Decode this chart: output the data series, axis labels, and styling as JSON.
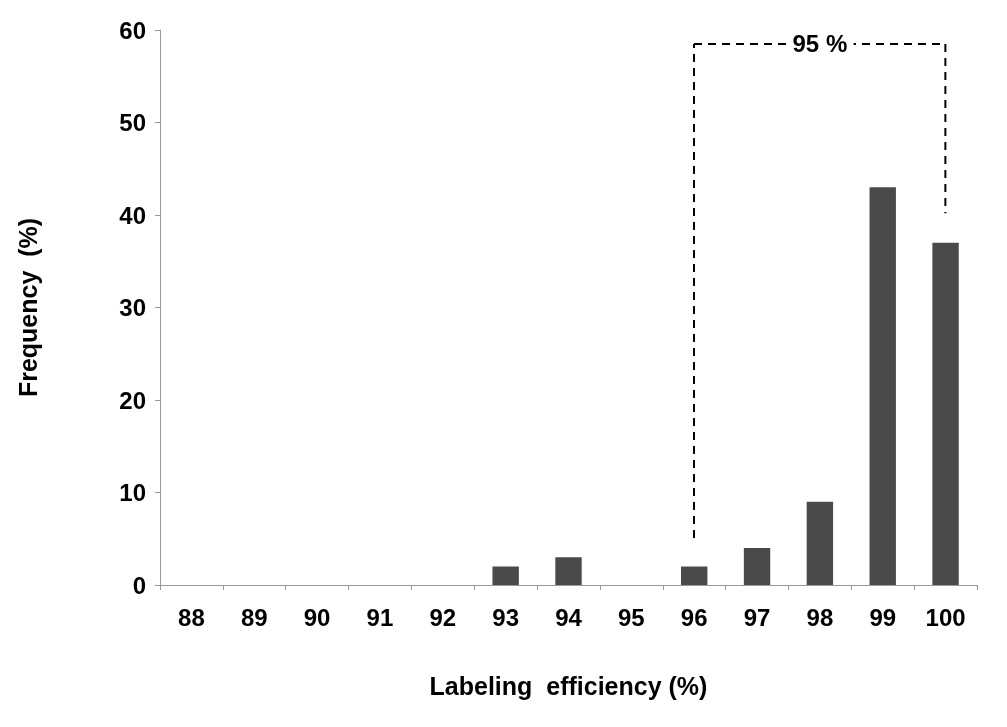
{
  "chart_data": {
    "type": "bar",
    "xlabel": "Labeling  efficiency (%)",
    "ylabel": "Frequency  (%)",
    "categories": [
      "88",
      "89",
      "90",
      "91",
      "92",
      "93",
      "94",
      "95",
      "96",
      "97",
      "98",
      "99",
      "100"
    ],
    "values": [
      0,
      0,
      0,
      0,
      0,
      2,
      3,
      0,
      2,
      4,
      9,
      43,
      37
    ],
    "color": "#4a4a4a",
    "ylim": [
      0,
      60
    ],
    "yticks": [
      0,
      10,
      20,
      30,
      40,
      50,
      60
    ],
    "grid": false,
    "annotations": [
      "95 %"
    ]
  }
}
